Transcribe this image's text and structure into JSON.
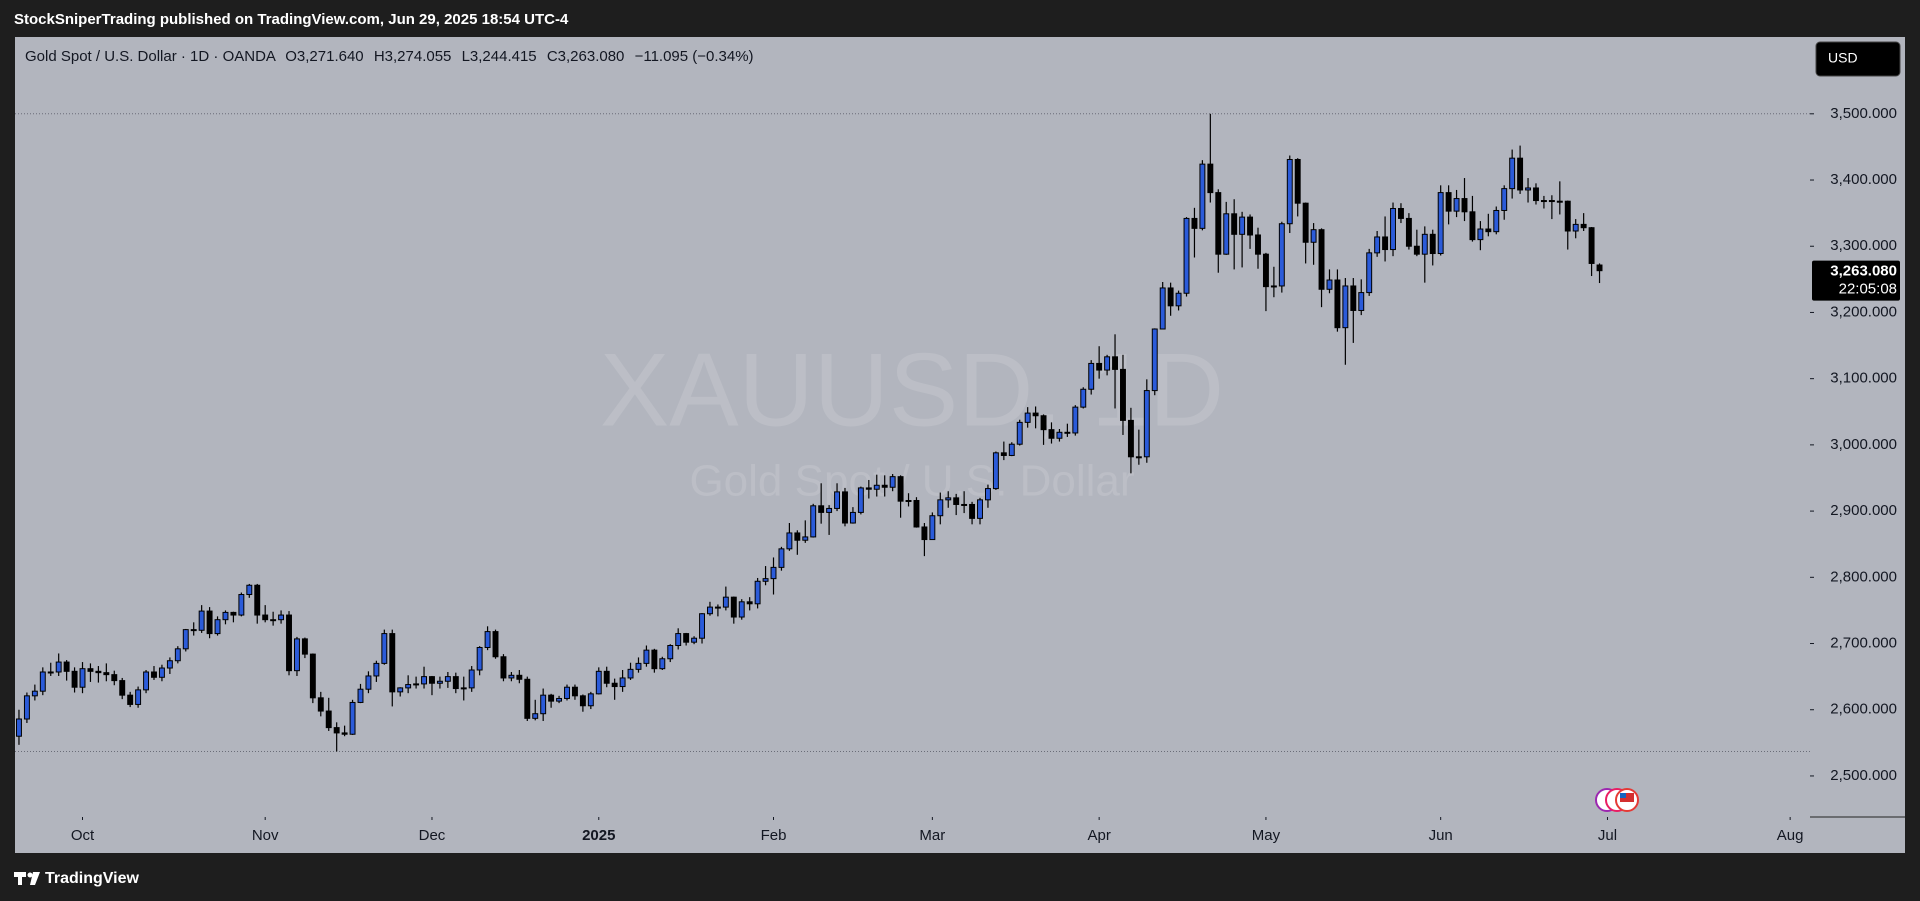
{
  "header": {
    "publisher": "StockSniperTrading published on TradingView.com, Jun 29, 2025 18:54 UTC-4",
    "brand": "TradingView"
  },
  "chart_data": {
    "type": "candlestick",
    "title": "Gold Spot / U.S. Dollar · 1D · OANDA",
    "legend_ohlc": [
      "O3,271.640",
      "H3,274.055",
      "L3,244.415",
      "C3,263.080"
    ],
    "change": "−11.095 (−0.34%)",
    "watermark": "XAUUSD, 1D",
    "watermark_subtitle": "Gold Spot / U.S. Dollar",
    "currency": "USD",
    "last_price_label": "3,263.080",
    "countdown": "22:05:08",
    "up_color": "#2b5bd9",
    "down_color": "#000000",
    "background": "#b2b5be",
    "grid": false,
    "open": [
      2560,
      2586,
      2621,
      2628,
      2657,
      2657,
      2672,
      2658,
      2634,
      2662,
      2658,
      2656,
      2653,
      2644,
      2622,
      2608,
      2630,
      2657,
      2649,
      2663,
      2674,
      2692,
      2721,
      2720,
      2749,
      2715,
      2736,
      2747,
      2743,
      2774,
      2788,
      2743,
      2736,
      2736,
      2743,
      2659,
      2707,
      2684,
      2618,
      2598,
      2573,
      2565,
      2563,
      2611,
      2631,
      2651,
      2670,
      2715,
      2627,
      2633,
      2638,
      2639,
      2650,
      2640,
      2643,
      2650,
      2632,
      2633,
      2660,
      2694,
      2718,
      2680,
      2648,
      2652,
      2646,
      2587,
      2594,
      2622,
      2613,
      2617,
      2634,
      2621,
      2606,
      2624,
      2658,
      2640,
      2635,
      2648,
      2661,
      2670,
      2690,
      2662,
      2677,
      2697,
      2715,
      2702,
      2708,
      2745,
      2755,
      2755,
      2770,
      2740,
      2763,
      2760,
      2794,
      2798,
      2815,
      2843,
      2867,
      2856,
      2861,
      2908,
      2898,
      2904,
      2929,
      2882,
      2898,
      2935,
      2933,
      2939,
      2936,
      2952,
      2915,
      2916,
      2876,
      2857,
      2893,
      2917,
      2920,
      2910,
      2910,
      2889,
      2917,
      2934,
      2988,
      2984,
      3001,
      3034,
      3048,
      3044,
      3023,
      3010,
      3019,
      3018,
      3057,
      3084,
      3123,
      3113,
      3133,
      3114,
      3037,
      2982,
      2982,
      3082,
      3175,
      3237,
      3210,
      3229,
      3342,
      3327,
      3424,
      3381,
      3288,
      3349,
      3318,
      3344,
      3317,
      3288,
      3239,
      3240,
      3334,
      3431,
      3365,
      3306,
      3325,
      3235,
      3249,
      3177,
      3240,
      3203,
      3230,
      3290,
      3314,
      3295,
      3357,
      3342,
      3300,
      3288,
      3318,
      3289,
      3381,
      3353,
      3372,
      3352,
      3310,
      3326,
      3322,
      3354,
      3387,
      3433,
      3385,
      3388,
      3369,
      3369,
      3368,
      3368,
      3323,
      3333,
      3328,
      3271.64
    ],
    "high": [
      2600,
      2626,
      2638,
      2664,
      2671,
      2685,
      2675,
      2664,
      2672,
      2670,
      2666,
      2670,
      2659,
      2648,
      2627,
      2635,
      2660,
      2666,
      2668,
      2679,
      2696,
      2722,
      2732,
      2758,
      2755,
      2741,
      2750,
      2748,
      2777,
      2790,
      2790,
      2758,
      2748,
      2750,
      2749,
      2710,
      2709,
      2685,
      2627,
      2618,
      2581,
      2576,
      2615,
      2639,
      2658,
      2674,
      2721,
      2721,
      2634,
      2652,
      2650,
      2665,
      2651,
      2650,
      2657,
      2656,
      2650,
      2666,
      2696,
      2726,
      2721,
      2684,
      2657,
      2660,
      2650,
      2615,
      2632,
      2624,
      2621,
      2638,
      2638,
      2623,
      2627,
      2664,
      2665,
      2647,
      2660,
      2671,
      2679,
      2697,
      2692,
      2680,
      2699,
      2723,
      2716,
      2711,
      2746,
      2763,
      2759,
      2786,
      2771,
      2767,
      2770,
      2799,
      2817,
      2830,
      2846,
      2882,
      2871,
      2886,
      2911,
      2942,
      2909,
      2942,
      2935,
      2906,
      2937,
      2947,
      2955,
      2954,
      2956,
      2954,
      2927,
      2921,
      2882,
      2898,
      2928,
      2930,
      2926,
      2930,
      2914,
      2920,
      2940,
      2990,
      3005,
      3004,
      3038,
      3057,
      3058,
      3046,
      3034,
      3024,
      3032,
      3060,
      3087,
      3128,
      3149,
      3136,
      3167,
      3136,
      3056,
      3023,
      3099,
      3176,
      3246,
      3245,
      3233,
      3344,
      3358,
      3430,
      3500,
      3386,
      3367,
      3371,
      3352,
      3348,
      3328,
      3290,
      3269,
      3337,
      3437,
      3433,
      3366,
      3335,
      3327,
      3265,
      3265,
      3252,
      3252,
      3250,
      3296,
      3323,
      3345,
      3366,
      3365,
      3350,
      3325,
      3330,
      3325,
      3392,
      3392,
      3385,
      3403,
      3376,
      3338,
      3349,
      3360,
      3392,
      3446,
      3452,
      3403,
      3395,
      3376,
      3377,
      3398,
      3369,
      3341,
      3350,
      3329,
      3274.055
    ],
    "low": [
      2547,
      2580,
      2614,
      2622,
      2651,
      2651,
      2644,
      2626,
      2625,
      2642,
      2641,
      2643,
      2637,
      2616,
      2604,
      2603,
      2625,
      2645,
      2643,
      2654,
      2670,
      2688,
      2712,
      2716,
      2708,
      2712,
      2729,
      2732,
      2741,
      2769,
      2730,
      2732,
      2727,
      2730,
      2652,
      2651,
      2678,
      2610,
      2590,
      2568,
      2537,
      2560,
      2562,
      2610,
      2625,
      2642,
      2668,
      2605,
      2620,
      2625,
      2632,
      2632,
      2622,
      2632,
      2633,
      2625,
      2614,
      2627,
      2652,
      2690,
      2677,
      2643,
      2643,
      2640,
      2583,
      2584,
      2583,
      2603,
      2610,
      2614,
      2615,
      2597,
      2601,
      2623,
      2634,
      2615,
      2627,
      2645,
      2656,
      2665,
      2656,
      2660,
      2672,
      2691,
      2697,
      2699,
      2700,
      2742,
      2741,
      2750,
      2730,
      2736,
      2750,
      2753,
      2788,
      2774,
      2810,
      2840,
      2834,
      2852,
      2860,
      2881,
      2864,
      2900,
      2877,
      2881,
      2895,
      2919,
      2922,
      2922,
      2930,
      2890,
      2907,
      2875,
      2832,
      2857,
      2880,
      2905,
      2894,
      2897,
      2880,
      2880,
      2905,
      2932,
      2977,
      2983,
      2999,
      3026,
      3025,
      3000,
      3002,
      3005,
      3012,
      3014,
      3055,
      3076,
      3100,
      3105,
      3055,
      3015,
      2957,
      2970,
      2973,
      3075,
      3175,
      3195,
      3203,
      3224,
      3283,
      3324,
      3366,
      3260,
      3287,
      3265,
      3268,
      3296,
      3266,
      3202,
      3223,
      3230,
      3320,
      3345,
      3274,
      3272,
      3208,
      3229,
      3171,
      3121,
      3154,
      3196,
      3225,
      3284,
      3277,
      3285,
      3335,
      3295,
      3285,
      3245,
      3271,
      3286,
      3333,
      3344,
      3338,
      3307,
      3294,
      3315,
      3318,
      3340,
      3372,
      3379,
      3366,
      3363,
      3357,
      3341,
      3348,
      3295,
      3312,
      3323,
      3255,
      3244.415
    ],
    "close": [
      2586,
      2621,
      2628,
      2657,
      2657,
      2672,
      2658,
      2634,
      2662,
      2658,
      2656,
      2653,
      2644,
      2622,
      2608,
      2630,
      2657,
      2649,
      2663,
      2674,
      2692,
      2721,
      2720,
      2749,
      2715,
      2736,
      2747,
      2743,
      2774,
      2788,
      2743,
      2736,
      2736,
      2743,
      2659,
      2707,
      2684,
      2618,
      2598,
      2573,
      2565,
      2563,
      2611,
      2631,
      2651,
      2670,
      2715,
      2627,
      2633,
      2638,
      2639,
      2650,
      2640,
      2643,
      2650,
      2632,
      2633,
      2660,
      2694,
      2718,
      2680,
      2648,
      2652,
      2646,
      2587,
      2594,
      2622,
      2613,
      2617,
      2634,
      2621,
      2606,
      2624,
      2658,
      2640,
      2635,
      2648,
      2661,
      2670,
      2690,
      2662,
      2677,
      2697,
      2715,
      2702,
      2708,
      2745,
      2755,
      2755,
      2770,
      2740,
      2763,
      2760,
      2794,
      2798,
      2815,
      2843,
      2867,
      2856,
      2861,
      2908,
      2898,
      2904,
      2929,
      2882,
      2898,
      2935,
      2933,
      2939,
      2936,
      2952,
      2915,
      2916,
      2876,
      2857,
      2893,
      2917,
      2920,
      2910,
      2910,
      2889,
      2917,
      2934,
      2988,
      2984,
      3001,
      3034,
      3048,
      3044,
      3023,
      3010,
      3019,
      3018,
      3057,
      3084,
      3123,
      3113,
      3133,
      3114,
      3037,
      2982,
      2982,
      3082,
      3175,
      3237,
      3210,
      3229,
      3342,
      3327,
      3424,
      3381,
      3288,
      3349,
      3318,
      3344,
      3317,
      3288,
      3239,
      3240,
      3334,
      3431,
      3365,
      3306,
      3325,
      3235,
      3249,
      3177,
      3240,
      3203,
      3230,
      3290,
      3314,
      3295,
      3357,
      3342,
      3300,
      3288,
      3318,
      3289,
      3381,
      3353,
      3372,
      3352,
      3310,
      3326,
      3322,
      3354,
      3387,
      3433,
      3385,
      3388,
      3369,
      3369,
      3368,
      3368,
      3323,
      3333,
      3328,
      3274,
      3263.08
    ],
    "xlim": [
      -0.5,
      225.5
    ],
    "xticks": [
      {
        "value": 8,
        "label": "Oct"
      },
      {
        "value": 31,
        "label": "Nov"
      },
      {
        "value": 52,
        "label": "Dec"
      },
      {
        "value": 73,
        "label": "2025"
      },
      {
        "value": 95,
        "label": "Feb"
      },
      {
        "value": 115,
        "label": "Mar"
      },
      {
        "value": 136,
        "label": "Apr"
      },
      {
        "value": 157,
        "label": "May"
      },
      {
        "value": 179,
        "label": "Jun"
      },
      {
        "value": 200,
        "label": "Jul"
      },
      {
        "value": 223,
        "label": "Aug"
      }
    ],
    "ylim": [
      2438,
      3616
    ],
    "yticks": [
      {
        "value": 2500,
        "label": "2,500.000"
      },
      {
        "value": 2600,
        "label": "2,600.000"
      },
      {
        "value": 2700,
        "label": "2,700.000"
      },
      {
        "value": 2800,
        "label": "2,800.000"
      },
      {
        "value": 2900,
        "label": "2,900.000"
      },
      {
        "value": 3000,
        "label": "3,000.000"
      },
      {
        "value": 3100,
        "label": "3,100.000"
      },
      {
        "value": 3200,
        "label": "3,200.000"
      },
      {
        "value": 3300,
        "label": "3,300.000"
      },
      {
        "value": 3400,
        "label": "3,400.000"
      },
      {
        "value": 3500,
        "label": "3,500.000"
      }
    ]
  }
}
